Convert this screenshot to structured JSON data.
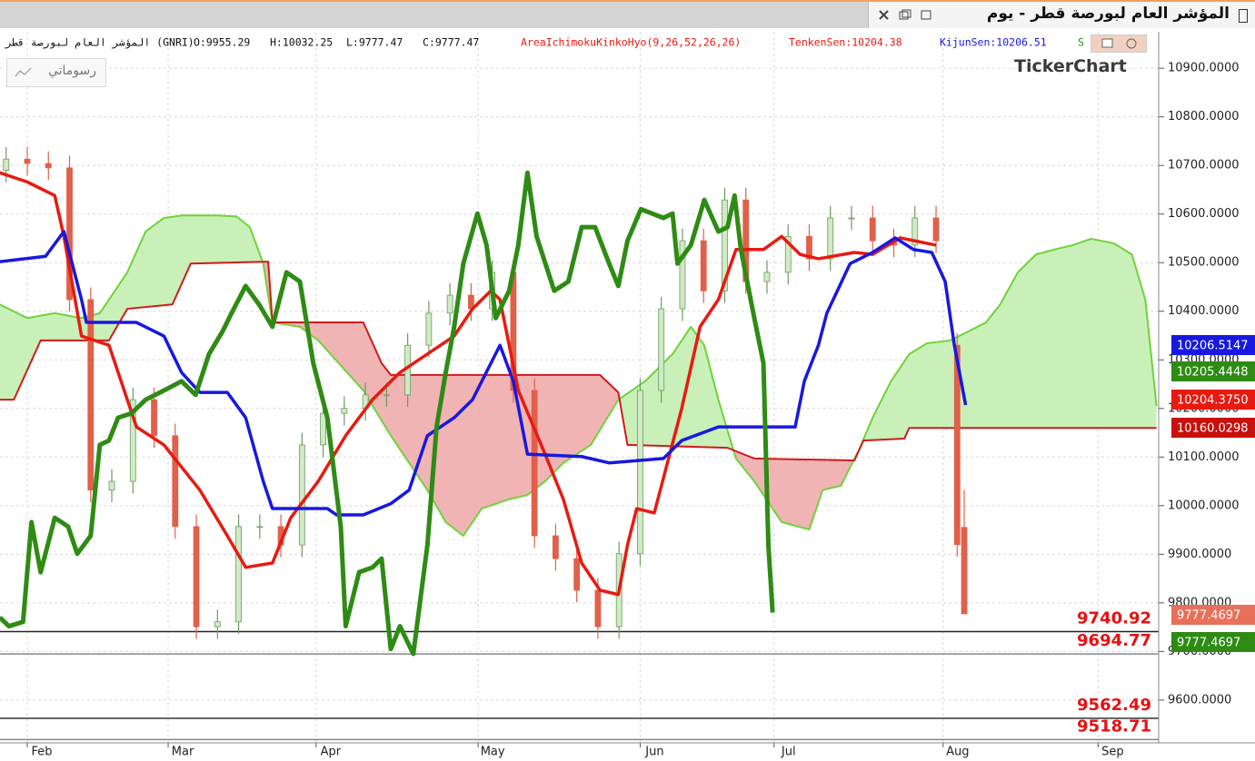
{
  "window": {
    "title": "المؤشر العام لبورصة قطر - يوم"
  },
  "info": {
    "instrument": "المؤشر العام لبورصة قطر (GNRI)",
    "open": "O:9955.29",
    "high": "H:10032.25",
    "low": "L:9777.47",
    "close": "C:9777.47",
    "indicator": "AreaIchimokuKinkoHyo(9,26,52,26,26)",
    "tenkan": "TenkenSen:10204.38",
    "kijun": "KijunSen:10206.51",
    "span": "S"
  },
  "drawing_button": "رسوماتي",
  "watermark": "TickerChart",
  "badges": [
    {
      "label": "10206.5147",
      "color": "#1818e0"
    },
    {
      "label": "10205.4448",
      "color": "#2e8b14"
    },
    {
      "label": "10204.3750",
      "color": "#e81a10"
    },
    {
      "label": "10160.0298",
      "color": "#c8100c"
    },
    {
      "label": "9777.4697",
      "color": "#e8705a"
    },
    {
      "label": "9777.4697",
      "color": "#2e8b14"
    }
  ],
  "chart_data": {
    "type": "candlestick",
    "x": [
      -3,
      0,
      3,
      6,
      9,
      12,
      15,
      18,
      21,
      24,
      27,
      30,
      33,
      36,
      39,
      42,
      45,
      48,
      51,
      54,
      57,
      60,
      63,
      66,
      69,
      72,
      75,
      78,
      81,
      84,
      87,
      90,
      93,
      96,
      99,
      102,
      105,
      108,
      111,
      114,
      117,
      120,
      123,
      126,
      129,
      132,
      133
    ],
    "open": [
      10690,
      10713,
      10704,
      10695,
      10424,
      10032,
      10050,
      10218,
      10144,
      9957,
      9751,
      9761,
      9957,
      9957,
      9919,
      10125,
      10190,
      10200,
      10228,
      10228,
      10330,
      10396,
      10433,
      10405,
      10480,
      10237,
      9938,
      9891,
      9826,
      9751,
      9901,
      10237,
      10405,
      10545,
      10442,
      10629,
      10461,
      10480,
      10554,
      10508,
      10592,
      10592,
      10545,
      10536,
      10592,
      10330,
      9955.29
    ],
    "high": [
      10738,
      10738,
      10729,
      10720,
      10449,
      10075,
      10243,
      10243,
      10169,
      9982,
      9786,
      9982,
      9982,
      9982,
      10150,
      10215,
      10225,
      10253,
      10253,
      10355,
      10421,
      10458,
      10458,
      10505,
      10505,
      10262,
      9963,
      9916,
      9851,
      9926,
      10262,
      10430,
      10570,
      10570,
      10654,
      10654,
      10505,
      10579,
      10579,
      10617,
      10617,
      10617,
      10570,
      10617,
      10617,
      10355,
      10032.25
    ],
    "low": [
      10665,
      10679,
      10670,
      10399,
      10007,
      10007,
      10025,
      10119,
      9932,
      9726,
      9726,
      9736,
      9932,
      9894,
      9894,
      10100,
      10165,
      10175,
      10203,
      10203,
      10305,
      10371,
      10380,
      10380,
      10212,
      9913,
      9866,
      9801,
      9726,
      9726,
      9876,
      10212,
      10380,
      10417,
      10417,
      10436,
      10436,
      10455,
      10483,
      10483,
      10567,
      10520,
      10511,
      10511,
      10520,
      9895,
      9777.47
    ],
    "close": [
      10713,
      10704,
      10695,
      10424,
      10032,
      10050,
      10218,
      10144,
      9957,
      9751,
      9761,
      9957,
      9957,
      9919,
      10125,
      10190,
      10200,
      10228,
      10228,
      10330,
      10396,
      10433,
      10405,
      10480,
      10237,
      9938,
      9891,
      9826,
      9751,
      9901,
      10237,
      10405,
      10545,
      10442,
      10629,
      10461,
      10480,
      10554,
      10508,
      10592,
      10592,
      10545,
      10536,
      10592,
      10545,
      9920,
      9777.47
    ],
    "up_color": "#cfeac4",
    "up_edge": "#6c9a60",
    "down_color": "#e0604a",
    "lines": [
      {
        "color": "#e81a10",
        "width": 3.5,
        "x": [
          -3.9,
          0,
          3.9,
          5.2,
          7.7,
          11.6,
          15.5,
          19.4,
          24.5,
          28.4,
          31,
          34.8,
          37.4,
          41.3,
          45.2,
          49,
          52.9,
          56.8,
          60.6,
          63.2,
          65.8,
          67.1,
          69.7,
          73.5,
          76.1,
          78.7,
          81.3,
          83.9,
          85.2,
          86.5,
          89,
          92.9,
          95.5,
          98.1,
          100.6,
          104.5,
          107.1,
          109.7,
          112.3,
          117.4,
          120,
          123.9,
          129
        ],
        "values": [
          10685,
          10666,
          10638,
          10554,
          10349,
          10330,
          10162,
          10125,
          10032,
          9938,
          9873,
          9882,
          9975,
          10050,
          10144,
          10218,
          10274,
          10312,
          10349,
          10405,
          10442,
          10424,
          10237,
          10106,
          10013,
          9882,
          9826,
          9817,
          9919,
          9994,
          9985,
          10200,
          10368,
          10424,
          10527,
          10527,
          10554,
          10517,
          10508,
          10521,
          10517,
          10551,
          10536
        ]
      },
      {
        "color": "#1818e0",
        "width": 3.5,
        "x": [
          -3.9,
          2.6,
          5.2,
          7.7,
          8.4,
          15.5,
          19.4,
          21.9,
          24.5,
          28.4,
          31,
          33.5,
          34.8,
          42.6,
          43.9,
          47.7,
          51.6,
          54.2,
          56.8,
          60.6,
          63.2,
          67.1,
          69,
          71,
          78.7,
          82.6,
          90.3,
          92.9,
          98.1,
          109,
          110.3,
          112.3,
          113.5,
          116.8,
          120,
          123.2,
          125.8,
          128.4,
          130.3,
          131.6,
          133.2
        ],
        "values": [
          10502,
          10513,
          10564,
          10424,
          10377,
          10377,
          10349,
          10274,
          10233,
          10233,
          10181,
          10050,
          9994,
          9994,
          9981,
          9981,
          10004,
          10032,
          10144,
          10181,
          10218,
          10330,
          10256,
          10106,
          10101,
          10088,
          10097,
          10134,
          10162,
          10162,
          10256,
          10330,
          10396,
          10498,
          10521,
          10551,
          10527,
          10521,
          10461,
          10330,
          10207
        ]
      },
      {
        "color": "#2e8b14",
        "width": 5,
        "x": [
          -3.9,
          -2.6,
          -0.6,
          0.6,
          1.9,
          3.9,
          5.8,
          7.1,
          9,
          10.3,
          11.6,
          12.9,
          14.8,
          16.8,
          19.4,
          21.9,
          23.9,
          25.8,
          27.7,
          29,
          31,
          32.9,
          34.8,
          36.8,
          38.7,
          40.6,
          42.6,
          44.5,
          45.2,
          47.1,
          49,
          50.3,
          51.6,
          52.9,
          54.8,
          56.8,
          58.1,
          59.4,
          60.6,
          61.9,
          63.9,
          65.2,
          66.5,
          68.4,
          69.7,
          71,
          72.3,
          74.8,
          76.8,
          78.7,
          80.6,
          82.6,
          83.9,
          85.2,
          87.1,
          90.3,
          91.6,
          92.3,
          94.2,
          96.1,
          98.1,
          99.4,
          100.4,
          101.3,
          103.2,
          104.5,
          105.2,
          105.8
        ],
        "values": [
          9770,
          9752,
          9761,
          9966,
          9863,
          9975,
          9957,
          9901,
          9938,
          10125,
          10134,
          10181,
          10190,
          10218,
          10237,
          10256,
          10228,
          10312,
          10358,
          10396,
          10452,
          10414,
          10368,
          10480,
          10461,
          10293,
          10181,
          9957,
          9752,
          9863,
          9873,
          9891,
          9705,
          9752,
          9695,
          9919,
          10162,
          10274,
          10368,
          10498,
          10601,
          10536,
          10386,
          10442,
          10536,
          10685,
          10554,
          10442,
          10461,
          10573,
          10573,
          10498,
          10452,
          10545,
          10610,
          10592,
          10601,
          10498,
          10536,
          10629,
          10564,
          10573,
          10638,
          10527,
          10386,
          10293,
          9919,
          9780
        ]
      }
    ],
    "cloud": {
      "span_a": {
        "color": "#6fd23a",
        "width": 2,
        "x": [
          -3.9,
          0,
          3.9,
          7.7,
          10.3,
          14.2,
          16.8,
          19.4,
          21.9,
          27.1,
          29.7,
          31.6,
          33.5,
          34.8,
          38.7,
          41.3,
          47.7,
          51.6,
          54.2,
          56.8,
          59.4,
          61.9,
          64.5,
          68.4,
          71,
          73.5,
          76.1,
          80,
          83.9,
          87.7,
          91.6,
          94.2,
          96.1,
          98.1,
          100.6,
          103.2,
          107.1,
          111,
          112.9,
          115.5,
          118.1,
          120,
          122.6,
          125.2,
          127.7,
          131,
          133.5,
          136.1,
          138.1,
          140.6,
          143.2,
          145.8,
          148.4,
          151,
          154.2,
          156.8,
          158.7,
          160.3
        ],
        "values": [
          10414,
          10386,
          10396,
          10386,
          10396,
          10480,
          10564,
          10592,
          10597,
          10597,
          10595,
          10573,
          10498,
          10377,
          10368,
          10340,
          10237,
          10144,
          10088,
          10032,
          9966,
          9938,
          9994,
          10013,
          10022,
          10050,
          10088,
          10125,
          10218,
          10256,
          10312,
          10368,
          10330,
          10218,
          10097,
          10050,
          9966,
          9951,
          10032,
          10041,
          10116,
          10181,
          10256,
          10312,
          10334,
          10340,
          10358,
          10377,
          10414,
          10480,
          10517,
          10527,
          10536,
          10549,
          10540,
          10517,
          10424,
          10205
        ]
      },
      "span_b": {
        "color": "#d01a1a",
        "width": 2,
        "x": [
          -3.9,
          -1.9,
          1.9,
          11.6,
          14.2,
          20.6,
          23.2,
          34.2,
          34.8,
          47.7,
          50.3,
          51.6,
          81.3,
          83.9,
          85.2,
          99.4,
          103.2,
          117.4,
          118.7,
          124.5,
          125.2,
          160.3
        ],
        "values": [
          10218,
          10218,
          10340,
          10340,
          10405,
          10414,
          10498,
          10502,
          10377,
          10377,
          10293,
          10269,
          10269,
          10233,
          10125,
          10119,
          10097,
          10093,
          10134,
          10138,
          10160,
          10160
        ]
      },
      "up_color": "#c8f0b8",
      "down_color": "#f0b4b4"
    },
    "levels": [
      9740.92,
      9694.77,
      9562.49,
      9518.71
    ],
    "level_colors": [
      "#222222",
      "#888888",
      "#333333",
      "#888888"
    ],
    "level_label_color": "#e81010",
    "xlim": [
      -3.87,
      160.6
    ],
    "xticks": [
      {
        "value": 0,
        "label": "Feb"
      },
      {
        "value": 20,
        "label": "Mar"
      },
      {
        "value": 41,
        "label": "Apr"
      },
      {
        "value": 64,
        "label": "May"
      },
      {
        "value": 87,
        "label": "Jun"
      },
      {
        "value": 106,
        "label": "Jul"
      },
      {
        "value": 130,
        "label": "Aug"
      },
      {
        "value": 152,
        "label": "Sep"
      }
    ],
    "ylim": [
      9512,
      10975
    ],
    "yticks": [
      {
        "value": 9600,
        "label": "9600.0000"
      },
      {
        "value": 9700,
        "label": "9700.0000"
      },
      {
        "value": 9800,
        "label": "9800.0000"
      },
      {
        "value": 9900,
        "label": "9900.0000"
      },
      {
        "value": 10000,
        "label": "10000.0000"
      },
      {
        "value": 10100,
        "label": "10100.0000"
      },
      {
        "value": 10200,
        "label": "10200.0000"
      },
      {
        "value": 10300,
        "label": "10300.0000"
      },
      {
        "value": 10400,
        "label": "10400.0000"
      },
      {
        "value": 10500,
        "label": "10500.0000"
      },
      {
        "value": 10600,
        "label": "10600.0000"
      },
      {
        "value": 10700,
        "label": "10700.0000"
      },
      {
        "value": 10800,
        "label": "10800.0000"
      },
      {
        "value": 10900,
        "label": "10900.0000"
      }
    ],
    "grid": true
  }
}
